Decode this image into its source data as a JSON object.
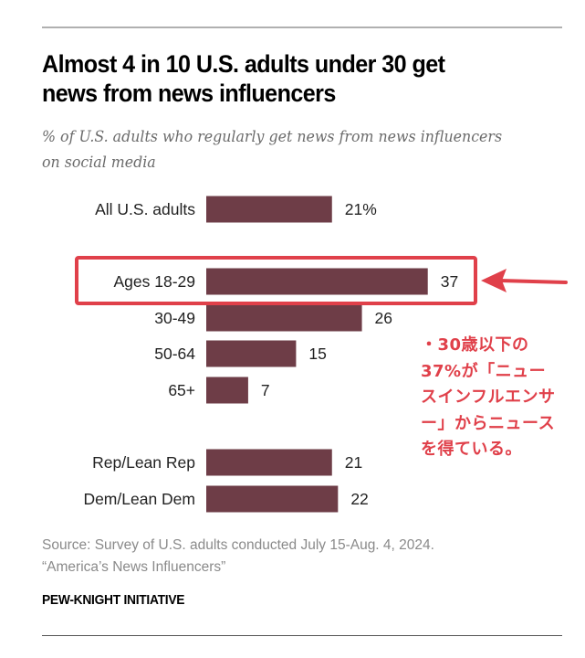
{
  "chart_data": {
    "type": "bar",
    "orientation": "horizontal",
    "title": "Almost 4 in 10 U.S. adults under 30 get news from news influencers",
    "subtitle": "% of U.S. adults who regularly get news from news influencers on social media",
    "categories": [
      "All U.S. adults",
      "Ages 18-29",
      "30-49",
      "50-64",
      "65+",
      "Rep/Lean Rep",
      "Dem/Lean Dem"
    ],
    "values": [
      21,
      37,
      26,
      15,
      7,
      21,
      22
    ],
    "value_labels": [
      "21%",
      "37",
      "26",
      "15",
      "7",
      "21",
      "22"
    ],
    "groups": [
      [
        0
      ],
      [
        1,
        2,
        3,
        4
      ],
      [
        5,
        6
      ]
    ],
    "highlighted_category": "Ages 18-29",
    "bar_color": "#6e3d47",
    "highlight_color": "#e0404a",
    "xlabel": "",
    "ylabel": "",
    "xlim": [
      0,
      37
    ],
    "grid": false,
    "legend": "none"
  },
  "header": {
    "title": "Almost 4 in 10 U.S. adults under 30 get\nnews from news influencers",
    "subtitle": "% of U.S. adults who regularly get news from news influencers on social media"
  },
  "annotation": {
    "text": "・30歳以下の37%が「ニュースインフルエンサー」からニュースを得ている。"
  },
  "footer": {
    "source_line1": "Source: Survey of U.S. adults conducted July 15-Aug. 4, 2024.",
    "source_line2": "“America’s News Influencers”",
    "brand": "PEW-KNIGHT INITIATIVE"
  }
}
